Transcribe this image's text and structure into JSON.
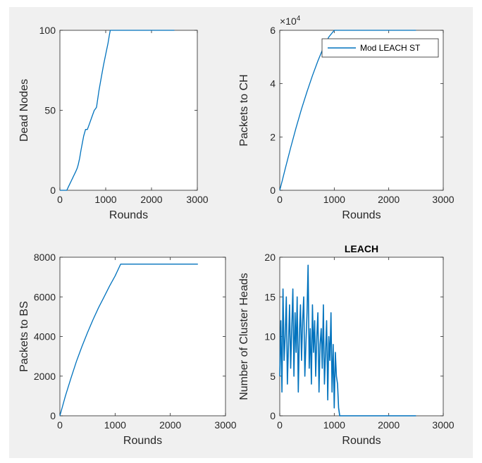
{
  "chart_data": [
    {
      "type": "line",
      "title": "",
      "xlabel": "Rounds",
      "ylabel": "Dead Nodes",
      "xlim": [
        0,
        3000
      ],
      "ylim": [
        0,
        100
      ],
      "xticks": [
        0,
        1000,
        2000,
        3000
      ],
      "yticks": [
        0,
        50,
        100
      ],
      "color": "#0072bd",
      "series": [
        {
          "x": [
            0,
            150,
            200,
            250,
            300,
            350,
            380,
            400,
            430,
            460,
            480,
            520,
            560,
            600,
            650,
            700,
            750,
            780,
            800,
            850,
            900,
            950,
            1000,
            1050,
            1080,
            1100,
            2500
          ],
          "y": [
            0,
            0,
            3,
            6,
            9,
            12,
            14,
            16,
            20,
            25,
            28,
            34,
            38,
            38,
            42,
            46,
            50,
            51,
            52,
            62,
            70,
            78,
            85,
            92,
            97,
            100,
            100
          ]
        }
      ]
    },
    {
      "type": "line",
      "title": "",
      "xlabel": "Rounds",
      "ylabel": "Packets to CH",
      "exponent_label": "×10",
      "exponent_power": "4",
      "xlim": [
        0,
        3000
      ],
      "ylim": [
        0,
        6
      ],
      "xticks": [
        0,
        1000,
        2000,
        3000
      ],
      "yticks": [
        0,
        2,
        4,
        6
      ],
      "legend": [
        "Mod LEACH ST"
      ],
      "legend_location": "top-right",
      "color": "#0072bd",
      "series": [
        {
          "x": [
            0,
            50,
            100,
            200,
            300,
            400,
            500,
            600,
            700,
            800,
            900,
            1000,
            1050,
            1100,
            2500
          ],
          "y": [
            0,
            0.4,
            0.8,
            1.6,
            2.35,
            3.05,
            3.7,
            4.3,
            4.85,
            5.35,
            5.75,
            6.05,
            6.15,
            6.2,
            6.2
          ]
        }
      ]
    },
    {
      "type": "line",
      "title": "",
      "xlabel": "Rounds",
      "ylabel": "Packets to BS",
      "xlim": [
        0,
        3000
      ],
      "ylim": [
        0,
        8000
      ],
      "xticks": [
        0,
        1000,
        2000,
        3000
      ],
      "yticks": [
        0,
        2000,
        4000,
        6000,
        8000
      ],
      "color": "#0072bd",
      "series": [
        {
          "x": [
            0,
            100,
            200,
            300,
            400,
            500,
            600,
            700,
            800,
            900,
            1000,
            1100,
            2500
          ],
          "y": [
            0,
            1000,
            1900,
            2750,
            3500,
            4200,
            4850,
            5450,
            6000,
            6550,
            7050,
            7650,
            7650
          ]
        }
      ]
    },
    {
      "type": "line",
      "title": "LEACH",
      "xlabel": "Rounds",
      "ylabel": "Number of Cluster Heads",
      "xlim": [
        0,
        3000
      ],
      "ylim": [
        0,
        20
      ],
      "xticks": [
        0,
        1000,
        2000,
        3000
      ],
      "yticks": [
        0,
        5,
        10,
        15,
        20
      ],
      "color": "#0072bd",
      "series": [
        {
          "x_start": 0,
          "x_step": 20,
          "y": [
            5,
            12,
            3,
            16,
            7,
            10,
            15,
            4,
            9,
            14,
            6,
            11,
            16,
            5,
            13,
            8,
            15,
            3,
            10,
            14,
            7,
            12,
            15,
            5,
            9,
            13,
            19,
            6,
            11,
            4,
            14,
            8,
            12,
            5,
            10,
            13,
            3,
            9,
            11,
            6,
            14,
            4,
            8,
            12,
            2,
            10,
            7,
            13,
            3,
            9,
            1,
            8,
            5,
            4,
            1,
            0,
            0,
            0,
            0,
            0,
            0,
            0,
            0,
            0,
            0,
            0,
            0,
            0,
            0,
            0,
            0,
            0,
            0,
            0,
            0,
            0,
            0,
            0,
            0,
            0,
            0,
            0,
            0,
            0,
            0,
            0,
            0,
            0,
            0,
            0,
            0,
            0,
            0,
            0,
            0,
            0,
            0,
            0,
            0,
            0,
            0,
            0,
            0,
            0,
            0,
            0,
            0,
            0,
            0,
            0,
            0,
            0,
            0,
            0,
            0,
            0,
            0,
            0,
            0,
            0,
            0,
            0,
            0,
            0,
            0,
            0
          ]
        }
      ]
    }
  ]
}
